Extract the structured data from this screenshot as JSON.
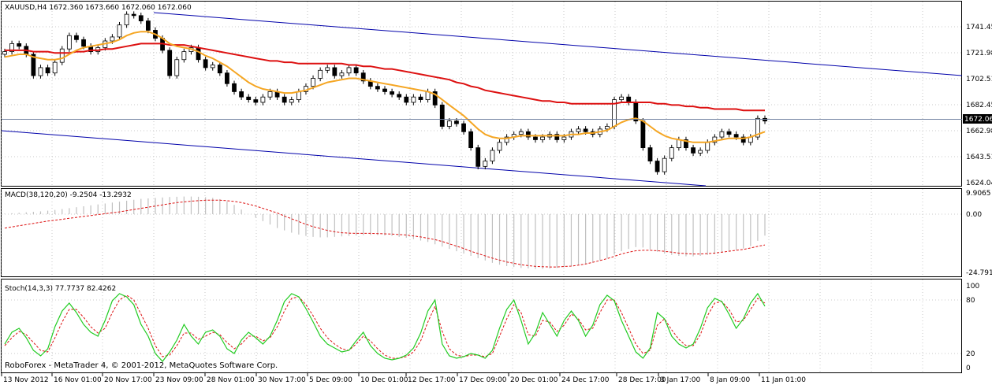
{
  "main_panel": {
    "header": "XAUUSD,H4  1672.360 1673.660 1672.060 1672.060",
    "price_ticks": [
      "1741.45",
      "1721.98",
      "1702.51",
      "1682.45",
      "1662.98",
      "1643.51",
      "1624.04"
    ],
    "current_price": "1672.06"
  },
  "macd_panel": {
    "header": "MACD(38,120,20) -9.2504 -13.2932",
    "ticks": [
      "9.9065",
      "0.00",
      "-24.7914"
    ]
  },
  "stoch_panel": {
    "header": "Stoch(14,3,3) 77.7737 82.4262",
    "ticks": [
      "100",
      "80",
      "20",
      "0"
    ]
  },
  "watermark": "RoboForex - MetaTrader 4, © 2001-2012, MetaQuotes Software Corp.",
  "time_axis": [
    "13 Nov 2012",
    "16 Nov 01:00",
    "20 Nov 17:00",
    "23 Nov 09:00",
    "28 Nov 01:00",
    "30 Nov 17:00",
    "5 Dec 09:00",
    "10 Dec 01:00",
    "12 Dec 17:00",
    "17 Dec 09:00",
    "20 Dec 01:00",
    "24 Dec 17:00",
    "28 Dec 17:00",
    "3 Jan 17:00",
    "8 Jan 09:00",
    "11 Jan 01:00"
  ],
  "colors": {
    "background": "#ffffff",
    "grid": "#c8c8c8",
    "ma_fast": "#f5a623",
    "ma_slow": "#dd1111",
    "channel": "#0000aa",
    "macd_hist": "#c0c0c0",
    "macd_signal": "#dd1111",
    "stoch_main": "#22cc22",
    "stoch_signal": "#dd1111",
    "candle": "#000000"
  },
  "chart_data": {
    "type": "candlestick",
    "symbol": "XAUUSD",
    "timeframe": "H4",
    "ylim": [
      1624.04,
      1751
    ],
    "close_series": [
      1724,
      1730,
      1728,
      1722,
      1706,
      1712,
      1708,
      1716,
      1726,
      1736,
      1733,
      1728,
      1724,
      1727,
      1732,
      1735,
      1744,
      1752,
      1751,
      1747,
      1740,
      1734,
      1725,
      1706,
      1718,
      1724,
      1727,
      1718,
      1712,
      1714,
      1708,
      1700,
      1694,
      1690,
      1688,
      1686,
      1690,
      1694,
      1690,
      1686,
      1688,
      1694,
      1698,
      1704,
      1710,
      1712,
      1706,
      1708,
      1712,
      1708,
      1702,
      1698,
      1696,
      1694,
      1692,
      1690,
      1686,
      1690,
      1688,
      1694,
      1684,
      1668,
      1672,
      1670,
      1664,
      1652,
      1638,
      1642,
      1650,
      1656,
      1660,
      1662,
      1664,
      1660,
      1658,
      1660,
      1662,
      1658,
      1660,
      1664,
      1666,
      1664,
      1662,
      1666,
      1668,
      1688,
      1690,
      1686,
      1672,
      1652,
      1642,
      1634,
      1644,
      1652,
      1658,
      1652,
      1648,
      1650,
      1656,
      1660,
      1664,
      1662,
      1660,
      1656,
      1660,
      1674,
      1672
    ],
    "ma_fast": [
      1720,
      1721,
      1722,
      1722,
      1720,
      1719,
      1718,
      1718,
      1719,
      1722,
      1725,
      1727,
      1728,
      1729,
      1730,
      1731,
      1733,
      1736,
      1738,
      1739,
      1739,
      1737,
      1734,
      1730,
      1728,
      1727,
      1726,
      1724,
      1721,
      1719,
      1716,
      1713,
      1709,
      1705,
      1701,
      1698,
      1696,
      1695,
      1694,
      1693,
      1693,
      1694,
      1695,
      1697,
      1699,
      1701,
      1702,
      1703,
      1704,
      1704,
      1703,
      1702,
      1701,
      1700,
      1699,
      1698,
      1697,
      1696,
      1695,
      1694,
      1692,
      1688,
      1684,
      1680,
      1676,
      1671,
      1666,
      1662,
      1660,
      1659,
      1659,
      1660,
      1661,
      1661,
      1661,
      1661,
      1661,
      1661,
      1661,
      1662,
      1662,
      1663,
      1663,
      1664,
      1665,
      1668,
      1671,
      1673,
      1674,
      1672,
      1668,
      1664,
      1661,
      1659,
      1658,
      1657,
      1656,
      1656,
      1656,
      1657,
      1658,
      1659,
      1659,
      1659,
      1660,
      1662,
      1664
    ],
    "ma_slow": [
      1725,
      1725,
      1725,
      1725,
      1724,
      1724,
      1724,
      1723,
      1723,
      1723,
      1724,
      1724,
      1725,
      1725,
      1726,
      1726,
      1727,
      1728,
      1729,
      1730,
      1730,
      1730,
      1730,
      1729,
      1729,
      1729,
      1728,
      1727,
      1726,
      1725,
      1724,
      1723,
      1722,
      1721,
      1720,
      1719,
      1718,
      1717,
      1717,
      1716,
      1716,
      1715,
      1715,
      1715,
      1715,
      1715,
      1715,
      1715,
      1714,
      1714,
      1713,
      1713,
      1712,
      1711,
      1711,
      1710,
      1709,
      1708,
      1707,
      1706,
      1705,
      1704,
      1703,
      1701,
      1700,
      1698,
      1697,
      1695,
      1694,
      1693,
      1692,
      1691,
      1690,
      1689,
      1688,
      1687,
      1687,
      1686,
      1686,
      1685,
      1685,
      1685,
      1685,
      1685,
      1685,
      1685,
      1686,
      1686,
      1686,
      1686,
      1686,
      1685,
      1685,
      1684,
      1684,
      1683,
      1683,
      1682,
      1682,
      1681,
      1681,
      1681,
      1681,
      1680,
      1680,
      1680,
      1680
    ],
    "macd_hist": [
      0.2,
      0.4,
      0.6,
      0.8,
      1,
      1.2,
      1.5,
      1.8,
      2.2,
      2.6,
      3,
      3.4,
      3.8,
      4.2,
      4.6,
      5,
      5.4,
      5.8,
      6.2,
      6.6,
      6.8,
      7,
      7.2,
      7.4,
      7.5,
      7.6,
      7.6,
      7.5,
      7.3,
      7,
      6.5,
      5.5,
      4,
      2,
      0,
      -1.5,
      -3,
      -4.5,
      -6,
      -7,
      -8,
      -8.8,
      -9.4,
      -9.8,
      -10,
      -10,
      -9.8,
      -9.6,
      -9.4,
      -9.2,
      -9,
      -9,
      -9,
      -9.2,
      -9.4,
      -9.8,
      -10.2,
      -10.8,
      -11.4,
      -12,
      -13,
      -14,
      -15,
      -16,
      -17,
      -18,
      -19,
      -20,
      -21,
      -21.8,
      -22.4,
      -22.8,
      -23.2,
      -23.4,
      -23.6,
      -23.6,
      -23.5,
      -23.2,
      -22.8,
      -22.4,
      -22,
      -21.5,
      -20.8,
      -20,
      -19,
      -17.5,
      -16,
      -15,
      -14.2,
      -14.4,
      -15.2,
      -16.2,
      -17,
      -17.6,
      -18,
      -18.2,
      -18.2,
      -18,
      -17.6,
      -17.2,
      -16.6,
      -16,
      -15.4,
      -14.8,
      -13.8,
      -11.5,
      -9.25
    ],
    "macd_signal": [
      -6,
      -5.5,
      -5,
      -4.5,
      -4,
      -3.5,
      -3,
      -2.6,
      -2.2,
      -1.8,
      -1.4,
      -1,
      -0.6,
      -0.2,
      0.2,
      0.6,
      1,
      1.5,
      2,
      2.5,
      3,
      3.5,
      4,
      4.5,
      5,
      5.3,
      5.6,
      5.8,
      6,
      6,
      6,
      5.8,
      5.5,
      5,
      4.3,
      3.5,
      2.5,
      1.5,
      0.5,
      -0.8,
      -2,
      -3.2,
      -4.4,
      -5.4,
      -6.2,
      -7,
      -7.6,
      -8,
      -8.2,
      -8.3,
      -8.3,
      -8.3,
      -8.4,
      -8.5,
      -8.6,
      -8.8,
      -9,
      -9.4,
      -9.8,
      -10.4,
      -11,
      -11.8,
      -12.8,
      -13.8,
      -14.8,
      -16,
      -17,
      -18,
      -19,
      -19.8,
      -20.6,
      -21.2,
      -21.8,
      -22.2,
      -22.5,
      -22.7,
      -22.8,
      -22.8,
      -22.6,
      -22.4,
      -22,
      -21.5,
      -20.8,
      -20,
      -19.2,
      -18.2,
      -17.2,
      -16.4,
      -15.8,
      -15.6,
      -15.6,
      -15.8,
      -16,
      -16.4,
      -16.8,
      -17,
      -17.2,
      -17.2,
      -17,
      -16.8,
      -16.4,
      -16,
      -15.6,
      -15.2,
      -14.6,
      -13.9,
      -13.29
    ],
    "stoch_main": [
      30,
      45,
      50,
      38,
      22,
      15,
      24,
      52,
      72,
      82,
      70,
      55,
      45,
      40,
      60,
      85,
      94,
      90,
      80,
      55,
      40,
      18,
      8,
      20,
      35,
      55,
      40,
      30,
      45,
      48,
      40,
      24,
      18,
      35,
      45,
      38,
      30,
      40,
      60,
      84,
      94,
      90,
      75,
      58,
      40,
      30,
      25,
      20,
      22,
      34,
      45,
      28,
      18,
      12,
      10,
      12,
      16,
      25,
      44,
      72,
      86,
      30,
      15,
      12,
      14,
      18,
      16,
      12,
      22,
      50,
      74,
      86,
      60,
      30,
      44,
      70,
      55,
      40,
      60,
      72,
      60,
      40,
      54,
      80,
      92,
      85,
      60,
      40,
      20,
      12,
      25,
      70,
      62,
      40,
      30,
      25,
      30,
      50,
      76,
      88,
      84,
      68,
      50,
      62,
      82,
      94,
      78
    ],
    "stoch_signal": [
      28,
      38,
      46,
      42,
      32,
      22,
      20,
      38,
      58,
      74,
      74,
      64,
      52,
      44,
      50,
      70,
      86,
      92,
      86,
      68,
      50,
      28,
      14,
      16,
      28,
      44,
      44,
      36,
      40,
      45,
      42,
      32,
      24,
      30,
      40,
      40,
      34,
      38,
      52,
      72,
      88,
      90,
      80,
      66,
      50,
      38,
      30,
      24,
      22,
      30,
      40,
      34,
      24,
      16,
      12,
      12,
      14,
      20,
      34,
      58,
      78,
      46,
      24,
      16,
      14,
      16,
      16,
      14,
      18,
      40,
      62,
      80,
      70,
      42,
      40,
      60,
      58,
      46,
      54,
      68,
      62,
      48,
      50,
      70,
      86,
      86,
      70,
      50,
      30,
      18,
      22,
      54,
      62,
      48,
      36,
      28,
      28,
      42,
      66,
      82,
      84,
      74,
      58,
      60,
      74,
      88,
      82
    ]
  }
}
